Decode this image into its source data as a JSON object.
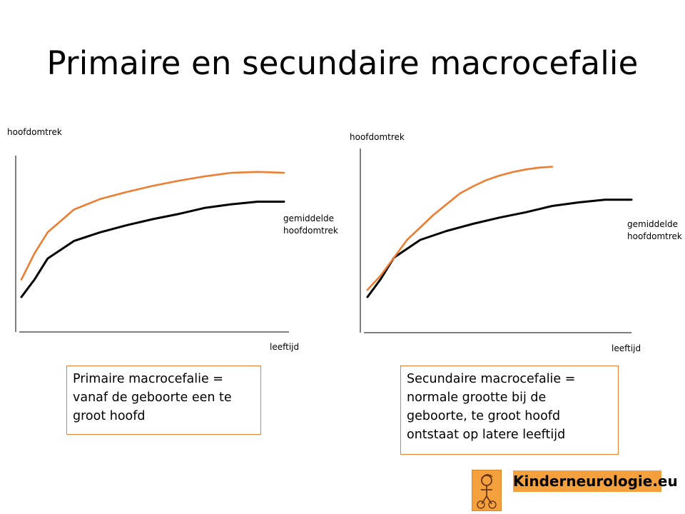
{
  "title": "Primaire en secundaire macrocefalie",
  "colors": {
    "orange": "#ed7d31",
    "black": "#000000",
    "logo_bg": "#f4a03c"
  },
  "chart_data": [
    {
      "type": "line",
      "ylabel": "hoofdomtrek",
      "xlabel": "leeftijd",
      "series_label": "gemiddelde\nhoofdomtrek",
      "series": [
        {
          "name": "gemiddelde hoofdomtrek",
          "color": "#000000",
          "x": [
            0,
            0.05,
            0.1,
            0.2,
            0.3,
            0.4,
            0.5,
            0.6,
            0.7,
            0.8,
            0.9,
            1.0
          ],
          "y": [
            0.2,
            0.3,
            0.42,
            0.52,
            0.57,
            0.61,
            0.645,
            0.675,
            0.71,
            0.73,
            0.745,
            0.745
          ]
        },
        {
          "name": "macrocefalie",
          "color": "#ed7d31",
          "x": [
            0,
            0.05,
            0.1,
            0.2,
            0.3,
            0.4,
            0.5,
            0.6,
            0.7,
            0.8,
            0.9,
            1.0
          ],
          "y": [
            0.3,
            0.45,
            0.57,
            0.7,
            0.76,
            0.8,
            0.835,
            0.865,
            0.89,
            0.91,
            0.915,
            0.91
          ]
        }
      ],
      "caption": [
        "Primaire macrocefalie =",
        "vanaf de geboorte een te",
        "groot hoofd"
      ]
    },
    {
      "type": "line",
      "ylabel": "hoofdomtrek",
      "xlabel": "leeftijd",
      "series_label": "gemiddelde\nhoofdomtrek",
      "series": [
        {
          "name": "gemiddelde hoofdomtrek",
          "color": "#000000",
          "x": [
            0,
            0.05,
            0.1,
            0.2,
            0.3,
            0.4,
            0.5,
            0.6,
            0.7,
            0.8,
            0.9,
            1.0
          ],
          "y": [
            0.2,
            0.3,
            0.42,
            0.52,
            0.57,
            0.61,
            0.645,
            0.675,
            0.71,
            0.73,
            0.745,
            0.745
          ]
        },
        {
          "name": "macrocefalie",
          "color": "#ed7d31",
          "x": [
            0,
            0.05,
            0.1,
            0.15,
            0.2,
            0.25,
            0.3,
            0.35,
            0.4,
            0.45,
            0.5,
            0.55,
            0.6,
            0.65,
            0.7
          ],
          "y": [
            0.24,
            0.32,
            0.42,
            0.52,
            0.59,
            0.66,
            0.72,
            0.78,
            0.82,
            0.855,
            0.88,
            0.9,
            0.915,
            0.925,
            0.93
          ]
        }
      ],
      "caption": [
        "Secundaire macrocefalie =",
        "normale grootte bij de",
        "geboorte, te groot hoofd",
        "ontstaat op latere leeftijd"
      ]
    }
  ],
  "logo": {
    "text": "Kinderneurologie.eu",
    "figure_icon": "child-figure-icon"
  }
}
